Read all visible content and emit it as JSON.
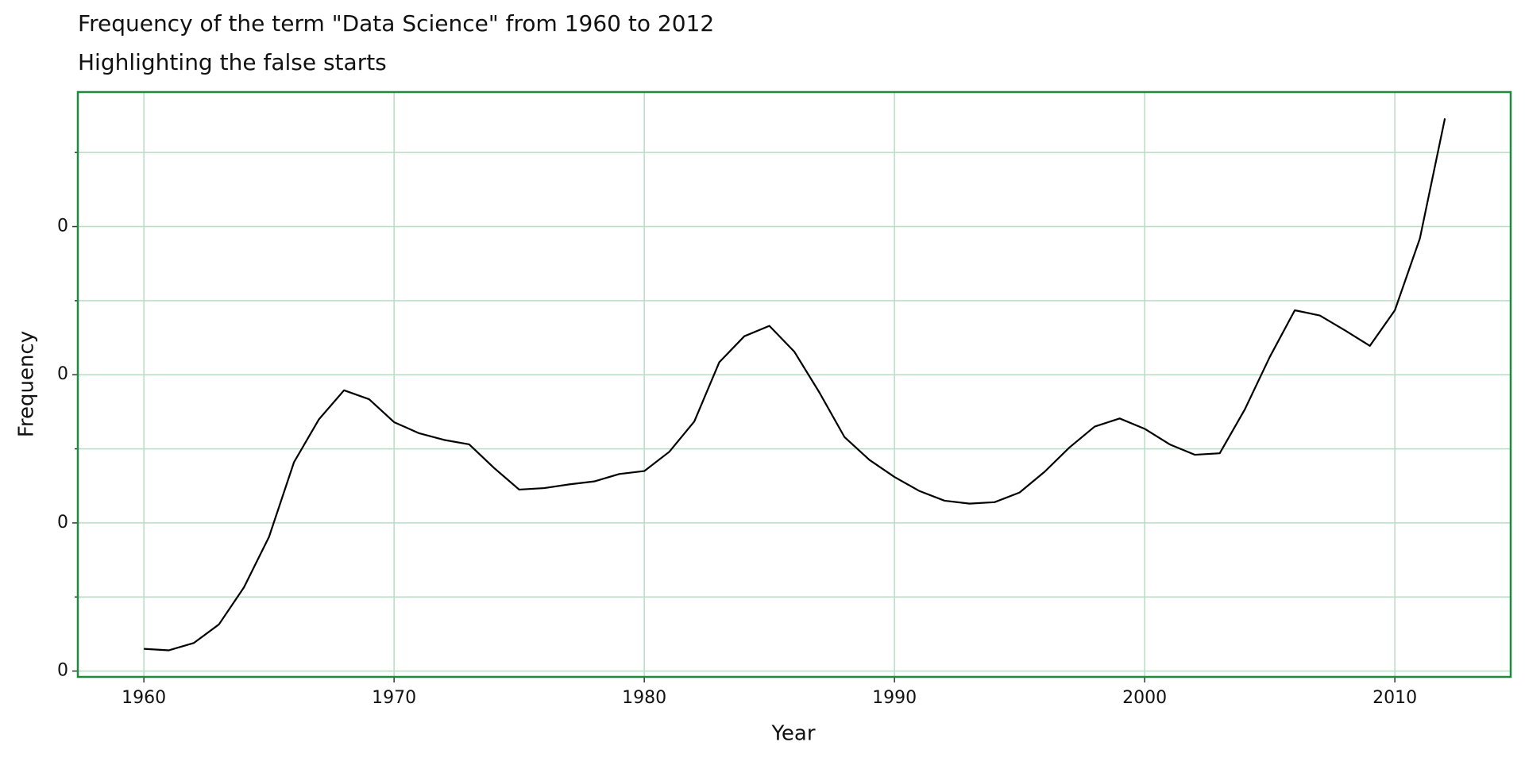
{
  "chart_data": {
    "type": "line",
    "title": "Frequency of the term \"Data Science\" from 1960 to 2012",
    "subtitle": "Highlighting the false starts",
    "xlabel": "Year",
    "ylabel": "Frequency",
    "x": [
      1960,
      1961,
      1962,
      1963,
      1964,
      1965,
      1966,
      1967,
      1968,
      1969,
      1970,
      1971,
      1972,
      1973,
      1974,
      1975,
      1976,
      1977,
      1978,
      1979,
      1980,
      1981,
      1982,
      1983,
      1984,
      1985,
      1986,
      1987,
      1988,
      1989,
      1990,
      1991,
      1992,
      1993,
      1994,
      1995,
      1996,
      1997,
      1998,
      1999,
      2000,
      2001,
      2002,
      2003,
      2004,
      2005,
      2006,
      2007,
      2008,
      2009,
      2010,
      2011,
      2012
    ],
    "series": [
      {
        "color": "#000000",
        "values": [
          3e-09,
          2.8e-09,
          3.8e-09,
          6.3e-09,
          1.13e-08,
          1.81e-08,
          2.82e-08,
          3.4e-08,
          3.79e-08,
          3.67e-08,
          3.36e-08,
          3.21e-08,
          3.12e-08,
          3.06e-08,
          2.74e-08,
          2.45e-08,
          2.47e-08,
          2.52e-08,
          2.56e-08,
          2.66e-08,
          2.7e-08,
          2.96e-08,
          3.37e-08,
          4.17e-08,
          4.52e-08,
          4.66e-08,
          4.31e-08,
          3.76e-08,
          3.16e-08,
          2.85e-08,
          2.62e-08,
          2.43e-08,
          2.3e-08,
          2.26e-08,
          2.28e-08,
          2.41e-08,
          2.69e-08,
          3.02e-08,
          3.3e-08,
          3.41e-08,
          3.27e-08,
          3.06e-08,
          2.92e-08,
          2.94e-08,
          3.53e-08,
          4.24e-08,
          4.87e-08,
          4.8e-08,
          4.6e-08,
          4.39e-08,
          4.87e-08,
          5.84e-08,
          7.46e-08
        ]
      }
    ],
    "xlim": [
      1957.36,
      2014.63
    ],
    "xticks": [
      1960,
      1970,
      1980,
      1990,
      2000,
      2010
    ],
    "ylim": [
      -7.9e-10,
      7.816e-08
    ],
    "yticks": [
      0,
      {
        "value": 2e-08,
        "label": "0"
      },
      {
        "value": 4e-08,
        "label": "0"
      },
      {
        "value": 6e-08,
        "label": "0"
      }
    ],
    "yminorticks": [
      1e-08,
      3e-08,
      5e-08,
      7e-08
    ],
    "grid": true,
    "frame_color": "#1e8a3c",
    "grid_color": "#b9dcc4"
  }
}
